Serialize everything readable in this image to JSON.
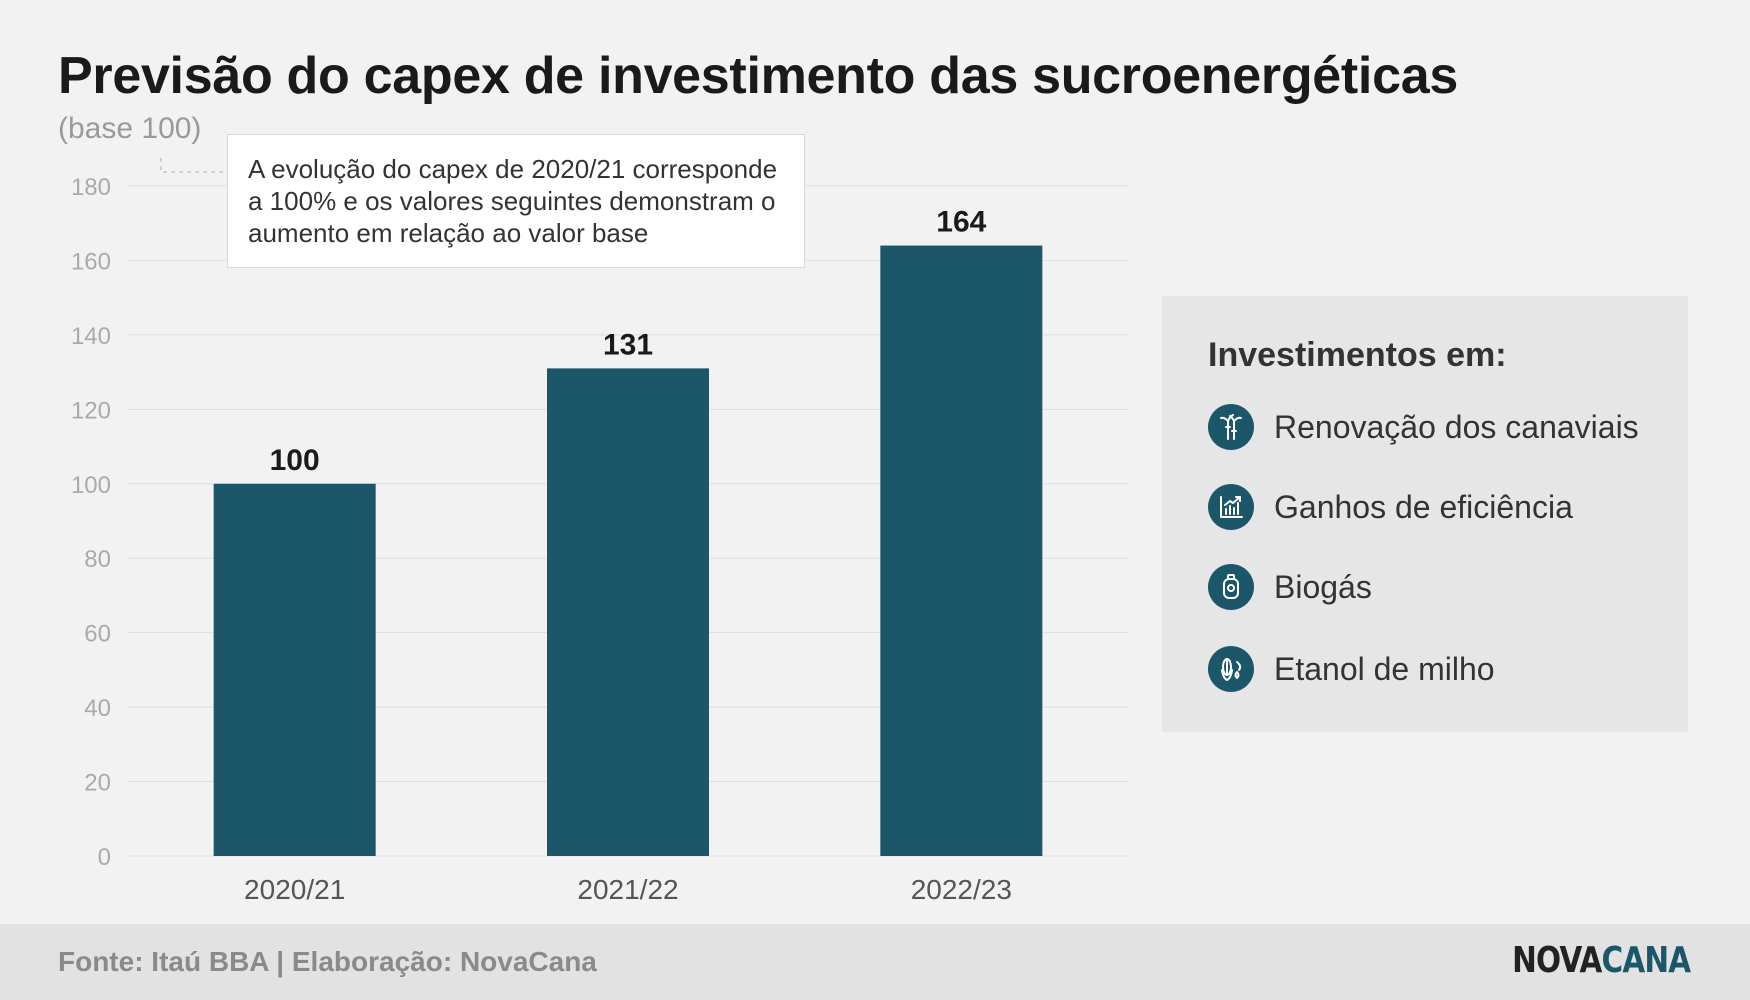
{
  "title": "Previsão do capex de investimento das sucroenergéticas",
  "subtitle": "(base 100)",
  "annotation": "A evolução do capex de 2020/21 corresponde a 100% e os valores seguintes demonstram o aumento em relação ao valor base",
  "legend": {
    "title": "Investimentos em:",
    "items": [
      {
        "label": "Renovação dos canaviais",
        "icon": "sugarcane-icon"
      },
      {
        "label": "Ganhos de eficiência",
        "icon": "growth-chart-icon"
      },
      {
        "label": "Biogás",
        "icon": "gas-cylinder-icon"
      },
      {
        "label": "Etanol de milho",
        "icon": "corn-fuel-icon"
      }
    ]
  },
  "footer": {
    "source": "Fonte: Itaú BBA | Elaboração: NovaCana",
    "logo_part1": "NOVA",
    "logo_part2": "CANA"
  },
  "colors": {
    "bar": "#1c5769",
    "background": "#f2f2f2",
    "gridline": "#dddddd",
    "tick_label": "#aaaaaa"
  },
  "chart_data": {
    "type": "bar",
    "categories": [
      "2020/21",
      "2021/22",
      "2022/23"
    ],
    "values": [
      100,
      131,
      164
    ],
    "title": "Previsão do capex de investimento das sucroenergéticas",
    "ylabel": "(base 100)",
    "xlabel": "",
    "ylim": [
      0,
      180
    ],
    "yticks": [
      0,
      20,
      40,
      60,
      80,
      100,
      120,
      140,
      160,
      180
    ],
    "grid": true,
    "data_labels": true
  }
}
